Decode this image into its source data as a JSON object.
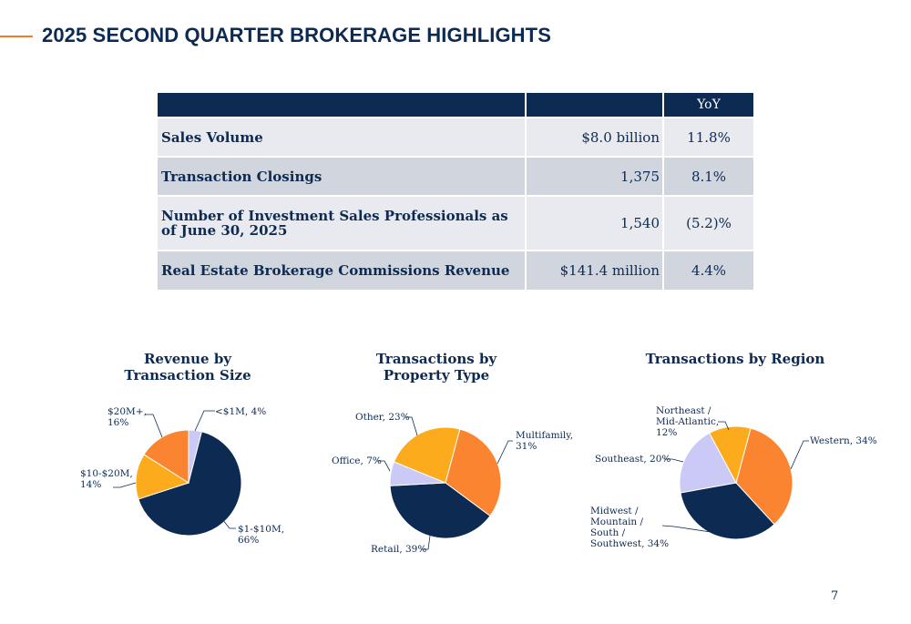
{
  "header": {
    "title": "2025 SECOND QUARTER BROKERAGE HIGHLIGHTS"
  },
  "table": {
    "columns": [
      "",
      "",
      "YoY"
    ],
    "rows": [
      {
        "metric": "Sales Volume",
        "value": "$8.0 billion",
        "yoy": "11.8%"
      },
      {
        "metric": "Transaction Closings",
        "value": "1,375",
        "yoy": "8.1%"
      },
      {
        "metric": "Number of Investment Sales Professionals as of June 30, 2025",
        "value": "1,540",
        "yoy": "(5.2)%"
      },
      {
        "metric": "Real Estate Brokerage Commissions Revenue",
        "value": "$141.4 million",
        "yoy": "4.4%"
      }
    ]
  },
  "colors": {
    "navy": "#0d2a52",
    "orange": "#fb8430",
    "gold": "#fbab1b",
    "lavender": "#cbcaf6",
    "accent": "#f47b2a"
  },
  "chart_data": [
    {
      "type": "pie",
      "title": "Revenue by Transaction Size",
      "slices": [
        {
          "label": "<$1M, 4%",
          "value": 4,
          "color": "#cbcaf6"
        },
        {
          "label": "$1-$10M, 66%",
          "value": 66,
          "color": "#0d2a52"
        },
        {
          "label": "$10-$20M, 14%",
          "value": 14,
          "color": "#fbab1b"
        },
        {
          "label": "$20M+, 16%",
          "value": 16,
          "color": "#fb8430"
        }
      ]
    },
    {
      "type": "pie",
      "title": "Transactions by Property Type",
      "slices": [
        {
          "label": "Multifamily, 31%",
          "value": 31,
          "color": "#fb8430"
        },
        {
          "label": "Retail, 39%",
          "value": 39,
          "color": "#0d2a52"
        },
        {
          "label": "Office, 7%",
          "value": 7,
          "color": "#cbcaf6"
        },
        {
          "label": "Other, 23%",
          "value": 23,
          "color": "#fbab1b"
        }
      ]
    },
    {
      "type": "pie",
      "title": "Transactions by Region",
      "slices": [
        {
          "label": "Western, 34%",
          "value": 34,
          "color": "#fb8430"
        },
        {
          "label": "Midwest / Mountain / South / Southwest, 34%",
          "value": 34,
          "color": "#0d2a52"
        },
        {
          "label": "Southeast, 20%",
          "value": 20,
          "color": "#cbcaf6"
        },
        {
          "label": "Northeast / Mid-Atlantic, 12%",
          "value": 12,
          "color": "#fbab1b"
        }
      ]
    }
  ],
  "footer": {
    "page_number": "7"
  }
}
